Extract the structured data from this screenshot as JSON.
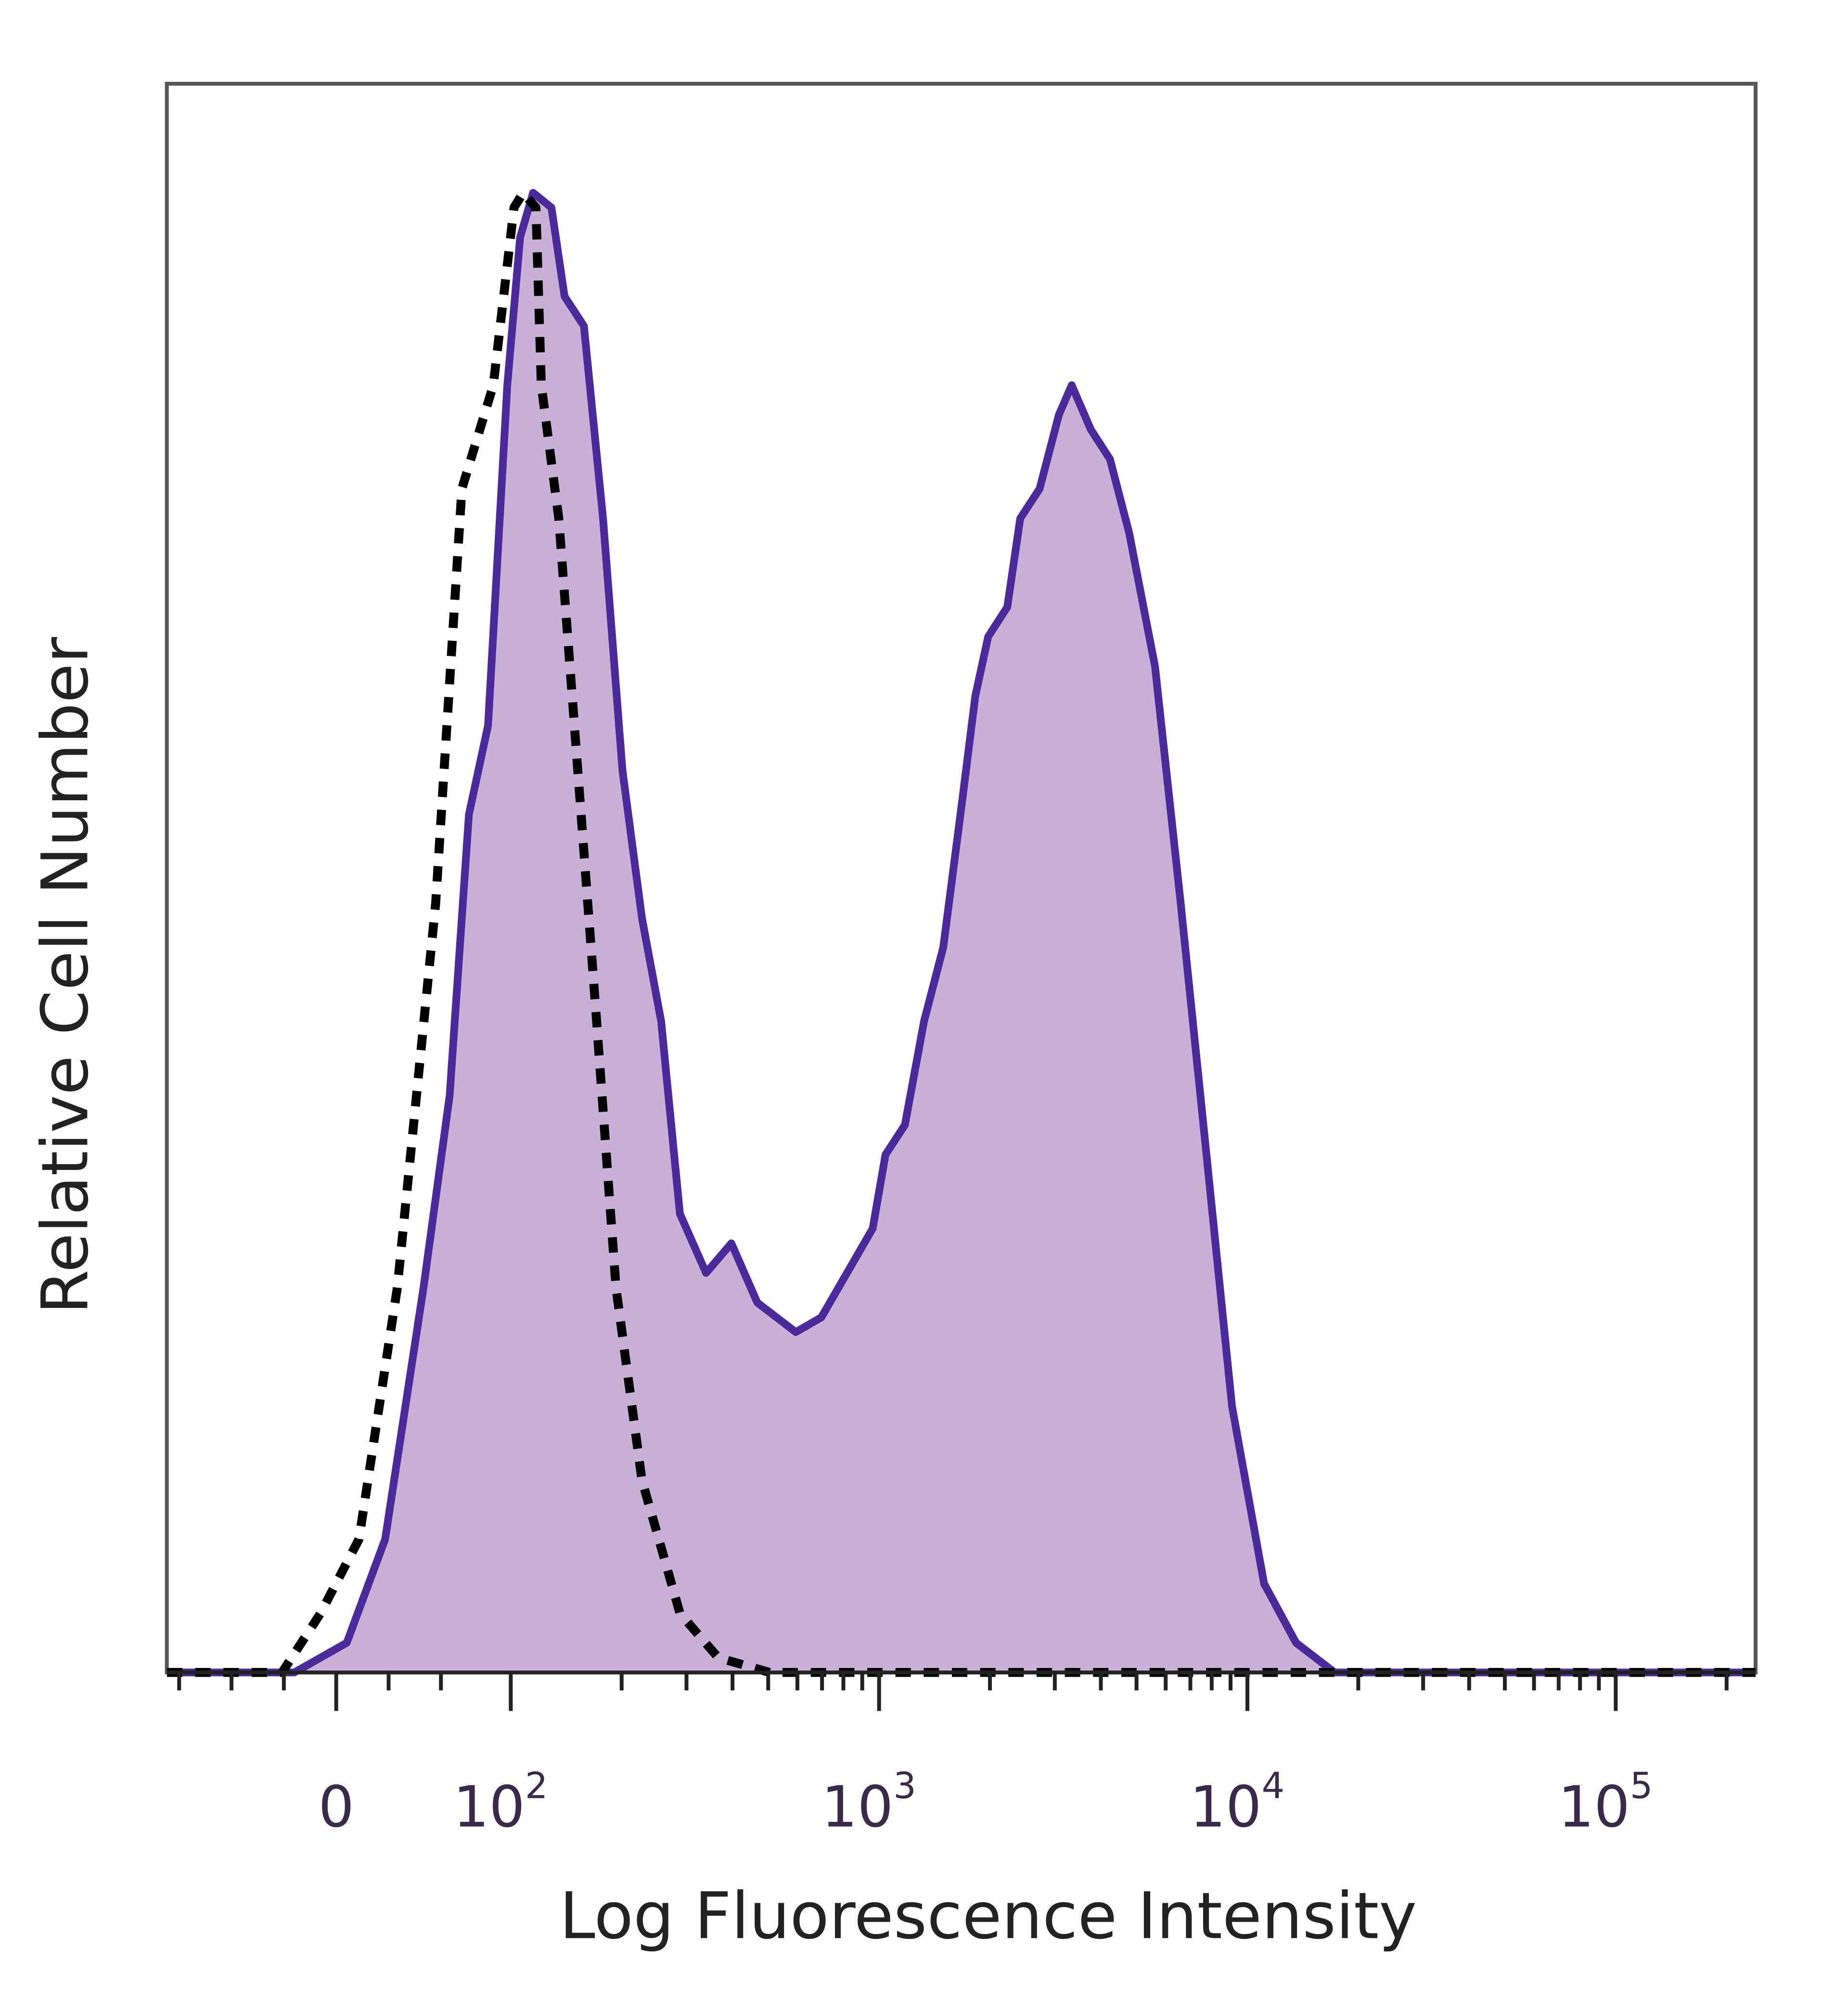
{
  "chart_data": {
    "type": "area",
    "title": "",
    "xlabel": "Log Fluorescence Intensity",
    "ylabel": "Relative Cell Number",
    "x_scale": "biexponential (linear near 0, log above 10^2)",
    "xlim": [
      -97,
      240000
    ],
    "ylim": [
      0,
      100
    ],
    "grid": false,
    "x_ticks": [
      {
        "value": 0,
        "label": "0"
      },
      {
        "value": 100,
        "label": "10",
        "exp": "2"
      },
      {
        "value": 1000,
        "label": "10",
        "exp": "3"
      },
      {
        "value": 10000,
        "label": "10",
        "exp": "4"
      },
      {
        "value": 100000,
        "label": "10",
        "exp": "5"
      }
    ],
    "series": [
      {
        "style": "filled-solid",
        "color": "#4b2a9a",
        "fill": "#c8b0d8",
        "x": [
          -97,
          -24,
          6,
          28,
          50,
          65,
          76,
          87,
          98,
          106,
          115,
          129,
          140,
          158,
          178,
          201,
          227,
          256,
          288,
          339,
          397,
          467,
          594,
          697,
          818,
          961,
          1041,
          1175,
          1324,
          1493,
          1683,
          1825,
          1977,
          2229,
          2417,
          2729,
          3076,
          3334,
          3758,
          4236,
          4776,
          5610,
          6590,
          7742,
          9080,
          11100,
          13550,
          17250,
          20270,
          240000
        ],
        "y": [
          0,
          0,
          2,
          9,
          26,
          39,
          58,
          64,
          87,
          97,
          100,
          99,
          93,
          91,
          78,
          61,
          51,
          44,
          31,
          27,
          29,
          25,
          23,
          24,
          27,
          30,
          35,
          37,
          44,
          49,
          59,
          66,
          70,
          72,
          78,
          80,
          85,
          87,
          84,
          82,
          77,
          68,
          52,
          35,
          18,
          6,
          2,
          0,
          0,
          0
        ]
      },
      {
        "style": "dashed",
        "color": "#000000",
        "x": [
          -97,
          -31,
          -9,
          13,
          35,
          57,
          72,
          90,
          102,
          108,
          117,
          121,
          135,
          152,
          171,
          193,
          227,
          288,
          366,
          505,
          240000
        ],
        "y": [
          0,
          0,
          4,
          9,
          26,
          52,
          80,
          87,
          99,
          100,
          99,
          87,
          78,
          61,
          44,
          26,
          13,
          4,
          1,
          0,
          0
        ]
      }
    ]
  }
}
